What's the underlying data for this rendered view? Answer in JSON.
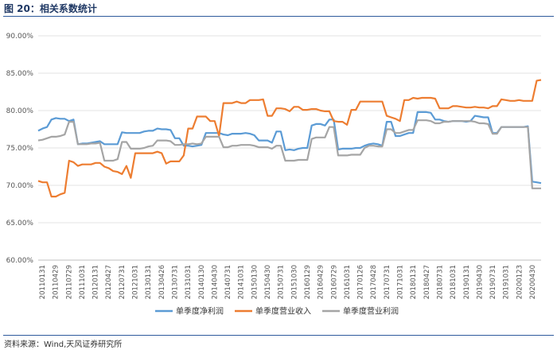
{
  "header": {
    "title": "图 20：相关系数统计"
  },
  "footer": {
    "source": "资料来源：Wind,天风证券研究所"
  },
  "chart_data": {
    "type": "line",
    "title": "图 20：相关系数统计",
    "xlabel": "",
    "ylabel": "",
    "ylim": [
      60,
      90
    ],
    "yticks": [
      "60.00%",
      "65.00%",
      "70.00%",
      "75.00%",
      "80.00%",
      "85.00%",
      "90.00%"
    ],
    "y_format": "percent",
    "grid": true,
    "legend": "bottom",
    "x_tick_labels": [
      "20110131",
      "20110429",
      "20110729",
      "20111031",
      "20120131",
      "20120427",
      "20120731",
      "20121031",
      "20130131",
      "20130426",
      "20130731",
      "20131031",
      "20140130",
      "20140430",
      "20140731",
      "20141031",
      "20150130",
      "20150430",
      "20150731",
      "20151030",
      "20160129",
      "20160429",
      "20160729",
      "20161031",
      "20170126",
      "20170428",
      "20170731",
      "20171031",
      "20180131",
      "20180427",
      "20180731",
      "20181031",
      "20190131",
      "20190430",
      "20190731",
      "20191031",
      "20200123",
      "20200430"
    ],
    "series": [
      {
        "name": "单季度净利润",
        "color": "#5b9bd5",
        "values": [
          77.3,
          77.6,
          77.8,
          78.8,
          79.0,
          78.9,
          78.9,
          78.6,
          78.8,
          75.5,
          75.6,
          75.6,
          75.7,
          75.8,
          75.9,
          75.5,
          75.5,
          75.5,
          75.5,
          77.1,
          77.0,
          77.0,
          77.0,
          77.0,
          77.2,
          77.3,
          77.3,
          77.6,
          77.5,
          77.5,
          77.4,
          76.3,
          76.3,
          75.3,
          75.3,
          75.2,
          75.3,
          75.4,
          77.0,
          77.0,
          77.0,
          77.0,
          76.8,
          76.7,
          76.9,
          76.9,
          76.9,
          77.0,
          76.9,
          76.7,
          76.0,
          76.0,
          76.0,
          75.7,
          77.2,
          77.2,
          74.7,
          74.8,
          74.7,
          74.9,
          75.0,
          75.0,
          78.0,
          78.2,
          78.2,
          78.0,
          78.8,
          78.8,
          74.8,
          74.9,
          74.9,
          74.9,
          75.0,
          75.0,
          75.3,
          75.5,
          75.6,
          75.5,
          75.3,
          78.5,
          78.5,
          76.6,
          76.6,
          76.8,
          77.0,
          77.0,
          79.8,
          79.8,
          79.8,
          79.7,
          78.8,
          78.8,
          78.6,
          78.5,
          78.6,
          78.6,
          78.6,
          78.5,
          78.6,
          79.3,
          79.2,
          79.1,
          79.1,
          77.0,
          77.0,
          77.8,
          77.8,
          77.8,
          77.8,
          77.8,
          77.8,
          77.9,
          70.5,
          70.4,
          70.3
        ]
      },
      {
        "name": "单季度营业收入",
        "color": "#ed7d31",
        "values": [
          70.6,
          70.4,
          70.4,
          68.5,
          68.5,
          68.8,
          69.0,
          73.3,
          73.1,
          72.6,
          72.8,
          72.8,
          72.8,
          73.0,
          73.0,
          72.5,
          72.3,
          71.9,
          71.8,
          71.5,
          72.6,
          71.0,
          74.3,
          74.3,
          74.3,
          74.3,
          74.3,
          74.5,
          74.3,
          72.9,
          73.2,
          73.2,
          73.2,
          74.0,
          77.6,
          77.6,
          79.2,
          79.2,
          79.2,
          78.6,
          78.6,
          76.6,
          81.0,
          81.0,
          81.0,
          81.2,
          81.0,
          81.0,
          81.4,
          81.4,
          81.4,
          81.5,
          79.3,
          79.3,
          80.3,
          80.3,
          80.2,
          79.9,
          80.5,
          80.5,
          80.1,
          80.1,
          80.2,
          80.2,
          80.0,
          79.9,
          79.9,
          78.6,
          78.5,
          78.5,
          78.1,
          80.1,
          80.1,
          81.2,
          81.2,
          81.2,
          81.2,
          81.2,
          81.2,
          79.3,
          79.1,
          78.9,
          78.6,
          81.4,
          81.4,
          81.7,
          81.6,
          81.7,
          81.7,
          81.7,
          81.6,
          80.3,
          80.3,
          80.3,
          80.6,
          80.6,
          80.5,
          80.4,
          80.4,
          80.5,
          80.4,
          80.4,
          80.3,
          80.6,
          80.6,
          81.5,
          81.4,
          81.3,
          81.3,
          81.4,
          81.3,
          81.3,
          81.3,
          84.0,
          84.1
        ]
      },
      {
        "name": "单季度营业利润",
        "color": "#a5a5a5",
        "values": [
          76.0,
          76.1,
          76.3,
          76.5,
          76.5,
          76.6,
          76.8,
          78.5,
          78.5,
          75.5,
          75.5,
          75.5,
          75.6,
          75.6,
          75.7,
          73.3,
          73.3,
          73.3,
          73.5,
          75.8,
          75.8,
          74.9,
          74.9,
          74.9,
          75.0,
          75.2,
          75.3,
          76.0,
          76.0,
          76.0,
          75.9,
          75.4,
          75.4,
          75.5,
          75.5,
          75.6,
          75.5,
          75.6,
          76.5,
          76.5,
          76.5,
          76.5,
          75.1,
          75.1,
          75.3,
          75.3,
          75.4,
          75.4,
          75.4,
          75.3,
          75.1,
          75.1,
          75.1,
          74.9,
          75.3,
          75.3,
          73.3,
          73.3,
          73.3,
          73.4,
          73.4,
          73.4,
          76.2,
          76.4,
          76.4,
          76.4,
          77.8,
          77.8,
          74.0,
          74.0,
          74.0,
          74.1,
          74.1,
          74.1,
          75.0,
          75.3,
          75.3,
          75.2,
          75.2,
          77.5,
          77.5,
          77.0,
          77.0,
          77.2,
          77.4,
          77.4,
          78.7,
          78.7,
          78.7,
          78.6,
          78.3,
          78.3,
          78.5,
          78.5,
          78.6,
          78.6,
          78.6,
          78.6,
          78.6,
          78.5,
          78.3,
          78.3,
          78.2,
          76.9,
          76.9,
          77.8,
          77.8,
          77.8,
          77.8,
          77.8,
          77.8,
          77.8,
          69.6,
          69.6,
          69.6
        ]
      }
    ]
  }
}
